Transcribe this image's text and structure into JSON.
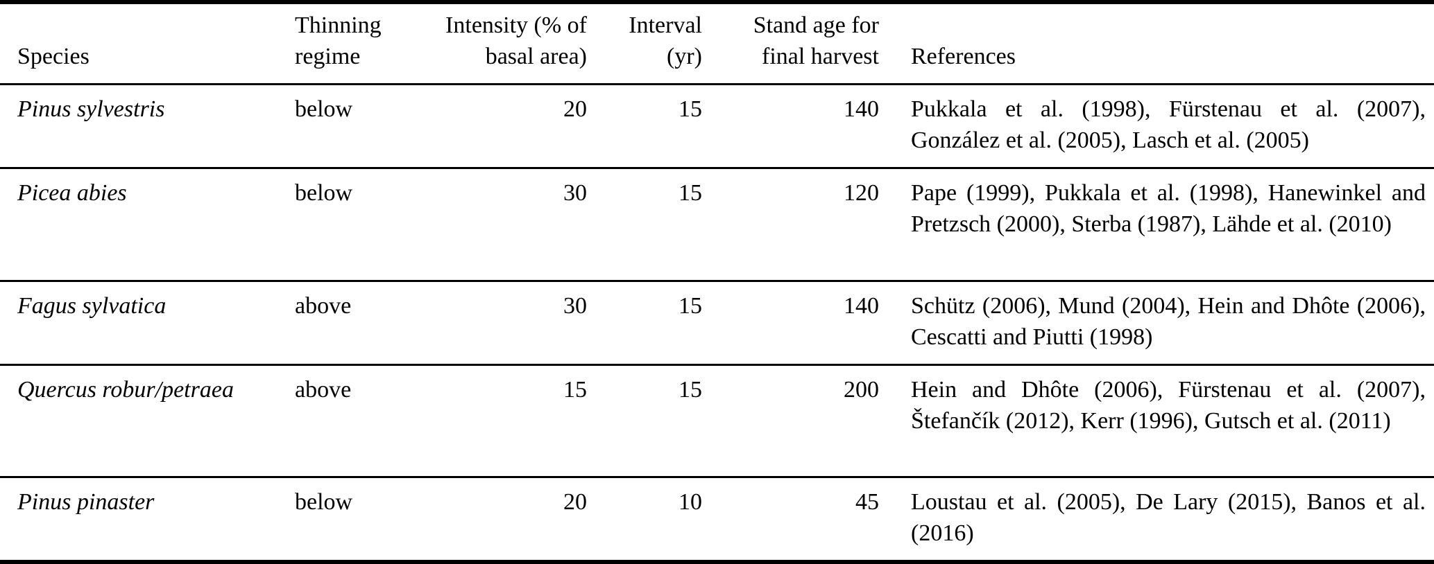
{
  "table": {
    "columns": [
      {
        "lines": [
          "Species"
        ],
        "align": "left"
      },
      {
        "lines": [
          "Thinning",
          "regime"
        ],
        "align": "left"
      },
      {
        "lines": [
          "Intensity (% of",
          "basal area)"
        ],
        "align": "right"
      },
      {
        "lines": [
          "Interval",
          "(yr)"
        ],
        "align": "right"
      },
      {
        "lines": [
          "Stand age for",
          "final harvest"
        ],
        "align": "right"
      },
      {
        "lines": [
          "References"
        ],
        "align": "left"
      }
    ],
    "rows": [
      {
        "species": "Pinus sylvestris",
        "regime": "below",
        "intensity": "20",
        "interval": "15",
        "stand_age": "140",
        "references": "Pukkala et al. (1998), Fürstenau et al. (2007), González et al. (2005), Lasch et al. (2005)"
      },
      {
        "species": "Picea abies",
        "regime": "below",
        "intensity": "30",
        "interval": "15",
        "stand_age": "120",
        "references": "Pape (1999), Pukkala et al. (1998), Hanewinkel and Pretzsch (2000), Sterba (1987), Lähde et al. (2010)"
      },
      {
        "species": "Fagus sylvatica",
        "regime": "above",
        "intensity": "30",
        "interval": "15",
        "stand_age": "140",
        "references": "Schütz (2006), Mund (2004), Hein and Dhôte (2006), Cescatti and Piutti (1998)"
      },
      {
        "species": "Quercus robur/petraea",
        "regime": "above",
        "intensity": "15",
        "interval": "15",
        "stand_age": "200",
        "references": "Hein and Dhôte (2006), Fürstenau et al. (2007), Štefančík (2012), Kerr (1996), Gutsch et al. (2011)"
      },
      {
        "species": "Pinus pinaster",
        "regime": "below",
        "intensity": "20",
        "interval": "10",
        "stand_age": "45",
        "references": "Loustau et al. (2005), De Lary (2015), Banos et al. (2016)"
      }
    ]
  }
}
